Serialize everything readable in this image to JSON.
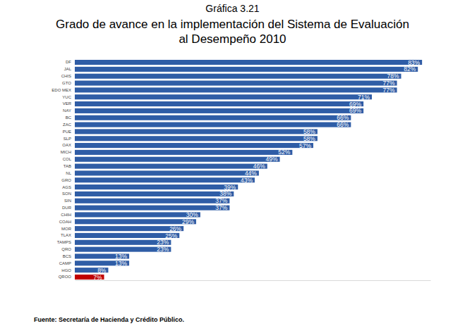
{
  "chart_data": {
    "type": "bar",
    "orientation": "horizontal",
    "title": "Gráfica 3.21",
    "subtitle": "Grado de avance en la implementación del Sistema de Evaluación\nal Desempeño 2010",
    "annotations": [
      "Fuente: Secretaría de Hacienda y Crédito Público."
    ],
    "categories": [
      "DF",
      "JAL",
      "CHIS",
      "GTO",
      "EDO MEX",
      "YUC",
      "VER",
      "NAY",
      "BC",
      "ZAC",
      "PUE",
      "SLP",
      "OAX",
      "MICH",
      "COL",
      "TAB",
      "NL",
      "GRO",
      "AGS",
      "SON",
      "SIN",
      "DUR",
      "CHIH",
      "COAH",
      "MOR",
      "TLAX",
      "TAMPS",
      "QRO",
      "BCS",
      "CAMP",
      "HGO",
      "QROO"
    ],
    "values": [
      83,
      82,
      78,
      77,
      77,
      71,
      69,
      69,
      66,
      66,
      58,
      58,
      57,
      52,
      49,
      46,
      44,
      43,
      39,
      38,
      37,
      37,
      30,
      29,
      26,
      25,
      23,
      23,
      13,
      13,
      8,
      7
    ],
    "value_labels": [
      "83%",
      "82%",
      "78%",
      "77%",
      "77%",
      "71%",
      "69%",
      "69%",
      "66%",
      "66%",
      "58%",
      "58%",
      "57%",
      "52%",
      "49%",
      "46%",
      "44%",
      "43%",
      "39%",
      "38%",
      "37%",
      "37%",
      "30%",
      "29%",
      "26%",
      "25%",
      "23%",
      "23%",
      "13%",
      "13%",
      "8%",
      "7%"
    ],
    "colors": [
      "#2f5da6",
      "#2f5da6",
      "#2f5da6",
      "#2f5da6",
      "#2f5da6",
      "#2f5da6",
      "#2f5da6",
      "#2f5da6",
      "#2f5da6",
      "#2f5da6",
      "#2f5da6",
      "#2f5da6",
      "#2f5da6",
      "#2f5da6",
      "#2f5da6",
      "#2f5da6",
      "#2f5da6",
      "#2f5da6",
      "#2f5da6",
      "#2f5da6",
      "#2f5da6",
      "#2f5da6",
      "#2f5da6",
      "#2f5da6",
      "#2f5da6",
      "#2f5da6",
      "#2f5da6",
      "#2f5da6",
      "#2f5da6",
      "#2f5da6",
      "#2f5da6",
      "#c00000"
    ],
    "xlim": [
      0,
      85
    ],
    "data_labels": true,
    "tick_labels": "y",
    "grid": false
  }
}
